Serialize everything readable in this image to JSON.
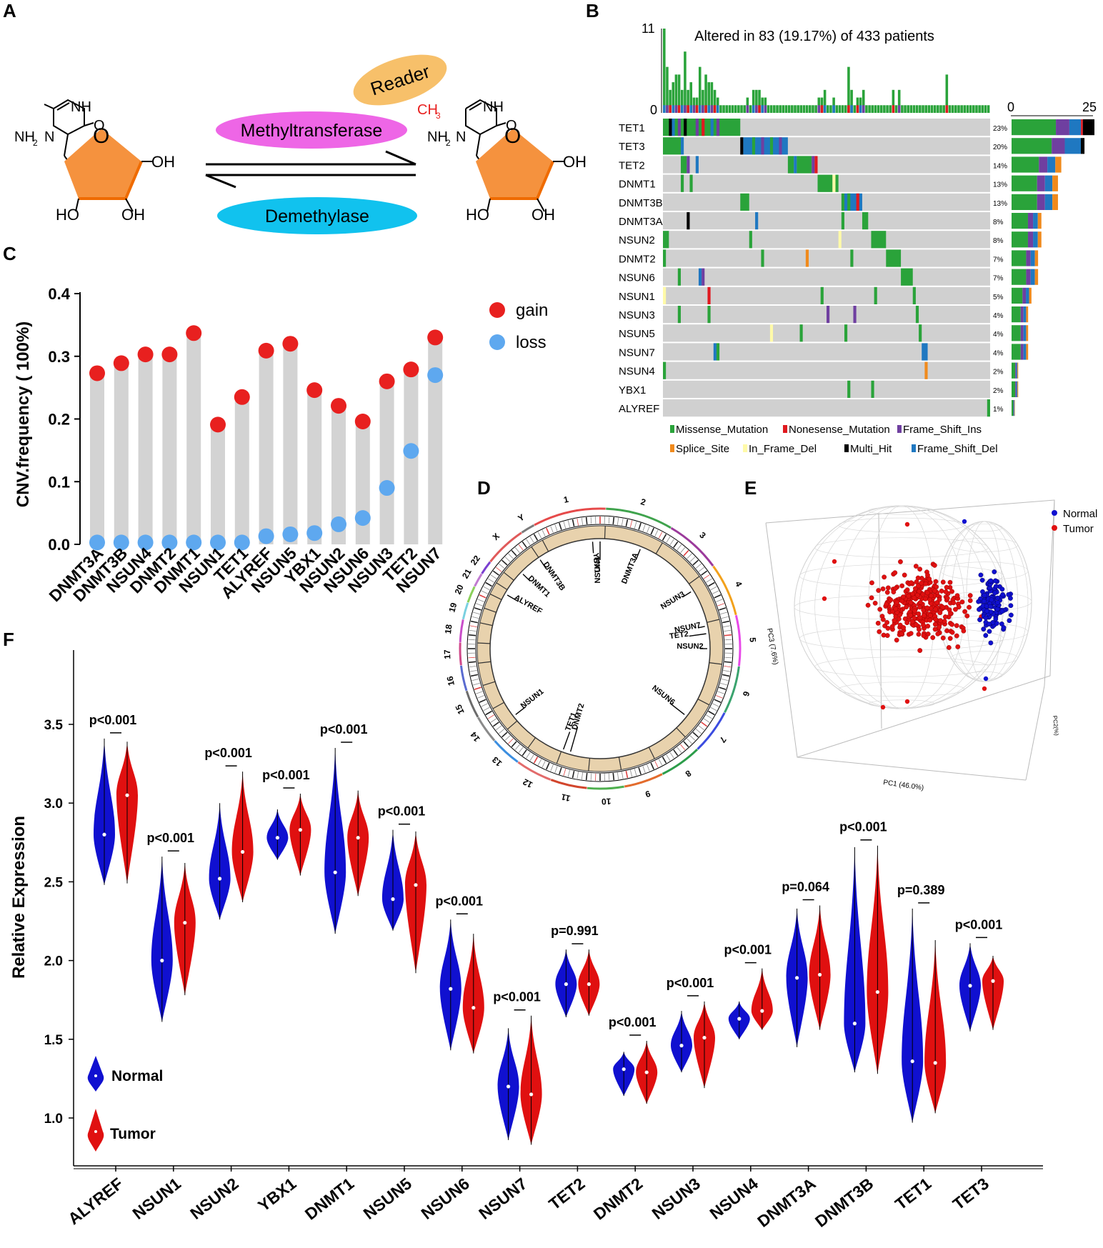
{
  "panel_letters": {
    "a": "A",
    "b": "B",
    "c": "C",
    "d": "D",
    "e": "E",
    "f": "F"
  },
  "colors": {
    "gain": "#e8201f",
    "loss": "#5ea8ef",
    "stem": "#d3d3d3",
    "pentagon": "#f5923e",
    "missense": "#2aa33a",
    "nonsense": "#e0191f",
    "frameins": "#6f3fa0",
    "splice": "#f08a1c",
    "inframedel": "#fffaa8",
    "multihit": "#000000",
    "framedel": "#1f78c1",
    "grid": "#d0d0d0",
    "normal": "#1010d0",
    "tumor": "#e01010",
    "reader": "#f7c06a",
    "methyl": "#ee66e6",
    "demeth": "#11c2ee"
  },
  "panel_a": {
    "reader_label": "Reader",
    "methyltransferase_label": "Methyltransferase",
    "demethylase_label": "Demethylase",
    "left_mol": {
      "nh": "NH",
      "nh2": "NH",
      "sub2": "2",
      "o": "O",
      "n": "N",
      "ring_o": "O",
      "oh_right": "OH",
      "ho_bottom": "HO",
      "oh_bottom": "OH"
    },
    "right_mol": {
      "ch3": "CH",
      "sub3": "3",
      "nh": "NH",
      "nh2": "NH",
      "sub2": "2",
      "o": "O",
      "n": "N",
      "ring_o": "O",
      "oh_right": "OH",
      "ho_bottom": "HO",
      "oh_bottom": "OH"
    }
  },
  "panel_b": {
    "title": "Altered in 83 (19.17%) of 433 patients",
    "top_axis": {
      "max_label": "11",
      "min_label": "0"
    },
    "side_axis": {
      "min_label": "0",
      "max_label": "25"
    },
    "genes": [
      "TET1",
      "TET3",
      "TET2",
      "DNMT1",
      "DNMT3B",
      "DNMT3A",
      "NSUN2",
      "DNMT2",
      "NSUN6",
      "NSUN1",
      "NSUN3",
      "NSUN5",
      "NSUN7",
      "NSUN4",
      "YBX1",
      "ALYREF"
    ],
    "percents": [
      "23%",
      "20%",
      "14%",
      "13%",
      "13%",
      "8%",
      "8%",
      "7%",
      "7%",
      "5%",
      "4%",
      "4%",
      "4%",
      "2%",
      "2%",
      "1%"
    ],
    "side_counts": [
      25,
      22,
      15,
      14,
      14,
      9,
      9,
      8,
      8,
      6,
      5,
      5,
      5,
      2,
      2,
      1
    ],
    "legend": [
      "Missense_Mutation",
      "Nonesense_Mutation",
      "Frame_Shift_Ins",
      "Splice_Site",
      "In_Frame_Del",
      "Multi_Hit",
      "Frame_Shift_Del"
    ]
  },
  "chart_data": [
    {
      "type": "scatter",
      "panel": "C",
      "ylabel": "CNV.frequency ( 100%)",
      "ylim": [
        0,
        0.4
      ],
      "yticks": [
        "0.0",
        "0.1",
        "0.2",
        "0.3",
        "0.4"
      ],
      "categories": [
        "DNMT3A",
        "DNMT3B",
        "NSUN4",
        "DNMT2",
        "DNMT1",
        "NSUN1",
        "TET1",
        "ALYREF",
        "NSUN5",
        "YBX1",
        "NSUN2",
        "NSUN6",
        "NSUN3",
        "TET2",
        "NSUN7"
      ],
      "series": [
        {
          "name": "gain",
          "values": [
            0.273,
            0.289,
            0.303,
            0.303,
            0.337,
            0.191,
            0.235,
            0.309,
            0.32,
            0.246,
            0.221,
            0.196,
            0.26,
            0.279,
            0.33
          ]
        },
        {
          "name": "loss",
          "values": [
            0.003,
            0.003,
            0.003,
            0.003,
            0.003,
            0.003,
            0.003,
            0.013,
            0.016,
            0.018,
            0.032,
            0.042,
            0.09,
            0.149,
            0.27
          ]
        }
      ],
      "legend": [
        "gain",
        "loss"
      ]
    },
    {
      "type": "violin",
      "panel": "F",
      "ylabel": "Relative Expression",
      "ylim": [
        0.8,
        3.9
      ],
      "yticks": [
        "1.0",
        "1.5",
        "2.0",
        "2.5",
        "3.0",
        "3.5"
      ],
      "categories": [
        "ALYREF",
        "NSUN1",
        "NSUN2",
        "YBX1",
        "DNMT1",
        "NSUN5",
        "NSUN6",
        "NSUN7",
        "TET2",
        "DNMT2",
        "NSUN3",
        "NSUN4",
        "DNMT3A",
        "DNMT3B",
        "TET1",
        "TET3"
      ],
      "pvalues": [
        "p<0.001",
        "p<0.001",
        "p<0.001",
        "p<0.001",
        "p<0.001",
        "p<0.001",
        "p<0.001",
        "p<0.001",
        "p=0.991",
        "p<0.001",
        "p<0.001",
        "p<0.001",
        "p=0.064",
        "p<0.001",
        "p=0.389",
        "p<0.001"
      ],
      "normal": {
        "median": [
          2.8,
          2.0,
          2.52,
          2.78,
          2.56,
          2.39,
          1.82,
          1.2,
          1.85,
          1.31,
          1.46,
          1.63,
          1.89,
          1.6,
          1.36,
          1.84
        ],
        "min": [
          2.48,
          1.61,
          2.26,
          2.64,
          2.17,
          2.19,
          1.43,
          0.86,
          1.64,
          1.14,
          1.29,
          1.5,
          1.45,
          1.29,
          0.97,
          1.55
        ],
        "max": [
          3.41,
          2.66,
          3.0,
          2.96,
          3.35,
          2.83,
          2.26,
          1.57,
          2.07,
          1.42,
          1.68,
          1.74,
          2.33,
          2.72,
          2.33,
          2.11
        ]
      },
      "tumor": {
        "median": [
          3.05,
          2.24,
          2.69,
          2.83,
          2.78,
          2.48,
          1.7,
          1.15,
          1.85,
          1.29,
          1.51,
          1.68,
          1.91,
          1.8,
          1.35,
          1.87
        ],
        "min": [
          2.49,
          1.78,
          2.37,
          2.54,
          2.41,
          1.92,
          1.41,
          0.83,
          1.65,
          1.09,
          1.19,
          1.56,
          1.56,
          1.28,
          1.03,
          1.56
        ],
        "max": [
          3.39,
          2.62,
          3.2,
          3.06,
          3.08,
          2.82,
          2.17,
          1.65,
          2.07,
          1.49,
          1.74,
          1.95,
          2.35,
          2.73,
          2.13,
          2.03
        ]
      },
      "legend": [
        "Normal",
        "Tumor"
      ]
    },
    {
      "type": "scatter",
      "panel": "E",
      "xlabel": "PC1 (46.0%)",
      "ylabel": "PC3 (7.6%)",
      "zlabel": "PC2(%)",
      "legend": [
        "Normal",
        "Tumor"
      ]
    }
  ],
  "panel_d": {
    "chromosomes": [
      "1",
      "2",
      "3",
      "4",
      "5",
      "6",
      "7",
      "8",
      "9",
      "10",
      "11",
      "12",
      "13",
      "14",
      "15",
      "16",
      "17",
      "18",
      "19",
      "20",
      "21",
      "22",
      "X",
      "Y"
    ],
    "gene_labels": [
      "YBX1",
      "NSUN4",
      "DNMT3A",
      "NSUN3",
      "NSUN7",
      "TET2",
      "NSUN2",
      "NSUN6",
      "DNMT2",
      "TET1",
      "NSUN1",
      "ALYREF",
      "DNMT1",
      "DNMT3B"
    ]
  }
}
